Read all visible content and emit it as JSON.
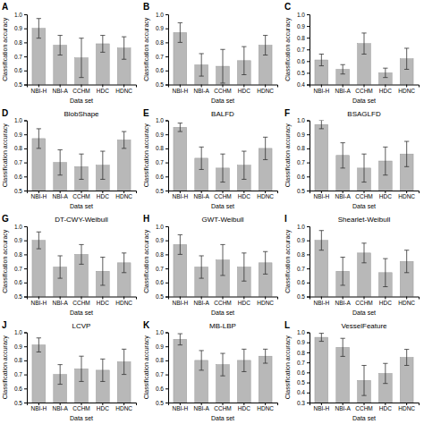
{
  "chart_data": [
    {
      "type": "bar",
      "annotations": [
        "A"
      ],
      "categories": [
        "NBI-H",
        "NBI-A",
        "CCHM",
        "HDC",
        "HDNC"
      ],
      "values": [
        0.9,
        0.78,
        0.69,
        0.79,
        0.76
      ],
      "errors": [
        0.07,
        0.07,
        0.14,
        0.06,
        0.08
      ],
      "color": "#b8b8b8",
      "xlabel": "Data set",
      "ylabel": "Classification accuracy",
      "ylim": [
        0.5,
        1.0
      ],
      "yticks": [
        0.5,
        0.6,
        0.7,
        0.8,
        0.9,
        {
          "value": 1.0,
          "label": "1.0"
        }
      ],
      "grid": false
    },
    {
      "type": "bar",
      "annotations": [
        "B"
      ],
      "categories": [
        "NBI-H",
        "NBI-A",
        "CCHM",
        "HDC",
        "HDNC"
      ],
      "values": [
        0.87,
        0.64,
        0.63,
        0.67,
        0.78
      ],
      "errors": [
        0.07,
        0.08,
        0.12,
        0.1,
        0.07
      ],
      "color": "#b8b8b8",
      "xlabel": "Data set",
      "ylabel": "Classification accuracy",
      "ylim": [
        0.5,
        1.0
      ],
      "yticks": [
        0.5,
        0.6,
        0.7,
        0.8,
        0.9,
        {
          "value": 1.0,
          "label": "1.0"
        }
      ],
      "grid": false
    },
    {
      "type": "bar",
      "annotations": [
        "C"
      ],
      "categories": [
        "NBI-H",
        "NBI-A",
        "CCHM",
        "HDC",
        "HDNC"
      ],
      "values": [
        0.61,
        0.53,
        0.75,
        0.5,
        0.62
      ],
      "errors": [
        0.05,
        0.04,
        0.09,
        0.04,
        0.09
      ],
      "color": "#b8b8b8",
      "xlabel": "Data set",
      "ylabel": "Classification accuracy",
      "ylim": [
        0.4,
        1.0
      ],
      "yticks": [
        0.4,
        0.5,
        0.6,
        0.7,
        0.8,
        0.9,
        {
          "value": 1.0,
          "label": "1.0"
        }
      ],
      "grid": false
    },
    {
      "type": "bar",
      "title": "BlobShape",
      "annotations": [
        "D"
      ],
      "categories": [
        "NBI-H",
        "NBI-A",
        "CCHM",
        "HDC",
        "HDNC"
      ],
      "values": [
        0.87,
        0.7,
        0.67,
        0.68,
        0.86
      ],
      "errors": [
        0.07,
        0.09,
        0.09,
        0.1,
        0.06
      ],
      "color": "#b8b8b8",
      "xlabel": "Data set",
      "ylabel": "Classification accuracy",
      "ylim": [
        0.5,
        1.0
      ],
      "yticks": [
        0.5,
        0.6,
        0.7,
        0.8,
        0.9,
        {
          "value": 1.0,
          "label": "1.0"
        }
      ],
      "grid": false
    },
    {
      "type": "bar",
      "title": "BALFD",
      "annotations": [
        "E"
      ],
      "categories": [
        "NBI-H",
        "NBI-A",
        "CCHM",
        "HDC",
        "HDNC"
      ],
      "values": [
        0.95,
        0.73,
        0.66,
        0.68,
        0.8
      ],
      "errors": [
        0.03,
        0.08,
        0.1,
        0.1,
        0.08
      ],
      "color": "#b8b8b8",
      "xlabel": "Data set",
      "ylabel": "Classification accuracy",
      "ylim": [
        0.5,
        1.0
      ],
      "yticks": [
        0.5,
        0.6,
        0.7,
        0.8,
        0.9,
        {
          "value": 1.0,
          "label": "1.0"
        }
      ],
      "grid": false
    },
    {
      "type": "bar",
      "title": "BSAGLFD",
      "annotations": [
        "F"
      ],
      "categories": [
        "NBI-H",
        "NBI-A",
        "CCHM",
        "HDC",
        "HDNC"
      ],
      "values": [
        0.97,
        0.75,
        0.66,
        0.71,
        0.76
      ],
      "errors": [
        0.03,
        0.09,
        0.1,
        0.1,
        0.09
      ],
      "color": "#b8b8b8",
      "xlabel": "Data set",
      "ylabel": "Classification accuracy",
      "ylim": [
        0.5,
        1.0
      ],
      "yticks": [
        0.5,
        0.6,
        0.7,
        0.8,
        0.9,
        {
          "value": 1.0,
          "label": "1.0"
        }
      ],
      "grid": false
    },
    {
      "type": "bar",
      "title": "DT-CWY-Weibull",
      "annotations": [
        "G"
      ],
      "categories": [
        "NBI-H",
        "NBI-A",
        "CCHM",
        "HDC",
        "HDNC"
      ],
      "values": [
        0.9,
        0.71,
        0.8,
        0.68,
        0.74
      ],
      "errors": [
        0.06,
        0.08,
        0.07,
        0.1,
        0.07
      ],
      "color": "#b8b8b8",
      "xlabel": "Data set",
      "ylabel": "Classification accuracy",
      "ylim": [
        0.5,
        1.0
      ],
      "yticks": [
        0.5,
        0.6,
        0.7,
        0.8,
        0.9,
        {
          "value": 1.0,
          "label": "1.0"
        }
      ],
      "grid": false
    },
    {
      "type": "bar",
      "title": "GWT-Weibull",
      "annotations": [
        "H"
      ],
      "categories": [
        "NBI-H",
        "NBI-A",
        "CCHM",
        "HDC",
        "HDNC"
      ],
      "values": [
        0.87,
        0.71,
        0.76,
        0.71,
        0.74
      ],
      "errors": [
        0.07,
        0.08,
        0.11,
        0.1,
        0.08
      ],
      "color": "#b8b8b8",
      "xlabel": "Data set",
      "ylabel": "Classification accuracy",
      "ylim": [
        0.5,
        1.0
      ],
      "yticks": [
        0.5,
        0.6,
        0.7,
        0.8,
        0.9,
        {
          "value": 1.0,
          "label": "1.0"
        }
      ],
      "grid": false
    },
    {
      "type": "bar",
      "title": "Shearlet-Weibull",
      "annotations": [
        "I"
      ],
      "categories": [
        "NBI-H",
        "NBI-A",
        "CCHM",
        "HDC",
        "HDNC"
      ],
      "values": [
        0.9,
        0.68,
        0.81,
        0.67,
        0.75
      ],
      "errors": [
        0.07,
        0.1,
        0.07,
        0.1,
        0.08
      ],
      "color": "#b8b8b8",
      "xlabel": "Data set",
      "ylabel": "Classification accuracy",
      "ylim": [
        0.5,
        1.0
      ],
      "yticks": [
        0.5,
        0.6,
        0.7,
        0.8,
        0.9,
        {
          "value": 1.0,
          "label": "1.0"
        }
      ],
      "grid": false
    },
    {
      "type": "bar",
      "title": "LCVP",
      "annotations": [
        "J"
      ],
      "categories": [
        "NBI-H",
        "NBI-A",
        "CCHM",
        "HDC",
        "HDNC"
      ],
      "values": [
        0.91,
        0.7,
        0.74,
        0.73,
        0.79
      ],
      "errors": [
        0.05,
        0.07,
        0.09,
        0.08,
        0.09
      ],
      "color": "#b8b8b8",
      "xlabel": "Data set",
      "ylabel": "Classification accuracy",
      "ylim": [
        0.5,
        1.0
      ],
      "yticks": [
        0.5,
        0.6,
        0.7,
        0.8,
        0.9,
        {
          "value": 1.0,
          "label": "1.0"
        }
      ],
      "grid": false
    },
    {
      "type": "bar",
      "title": "MB-LBP",
      "annotations": [
        "K"
      ],
      "categories": [
        "NBI-H",
        "NBI-A",
        "CCHM",
        "HDC",
        "HDNC"
      ],
      "values": [
        0.95,
        0.8,
        0.77,
        0.8,
        0.83
      ],
      "errors": [
        0.04,
        0.07,
        0.08,
        0.08,
        0.05
      ],
      "color": "#b8b8b8",
      "xlabel": "Data set",
      "ylabel": "Classification accuracy",
      "ylim": [
        0.5,
        1.0
      ],
      "yticks": [
        0.5,
        0.6,
        0.7,
        0.8,
        0.9,
        {
          "value": 1.0,
          "label": "1.0"
        }
      ],
      "grid": false
    },
    {
      "type": "bar",
      "title": "VesselFeature",
      "annotations": [
        "L"
      ],
      "categories": [
        "NBI-H",
        "NBI-A",
        "CCHM",
        "HDC",
        "HDNC"
      ],
      "values": [
        0.95,
        0.85,
        0.52,
        0.59,
        0.75
      ],
      "errors": [
        0.04,
        0.09,
        0.15,
        0.1,
        0.08
      ],
      "color": "#b8b8b8",
      "xlabel": "Data set",
      "ylabel": "Classification accuracy",
      "ylim": [
        0.3,
        1.0
      ],
      "yticks": [
        0.3,
        0.4,
        0.5,
        0.6,
        0.7,
        0.8,
        0.9,
        {
          "value": 1.0,
          "label": "1.0"
        }
      ],
      "grid": false
    }
  ]
}
